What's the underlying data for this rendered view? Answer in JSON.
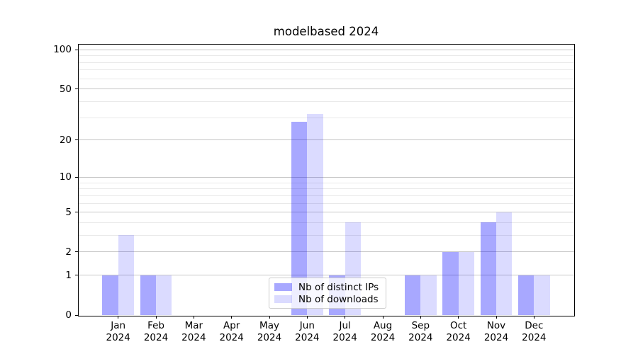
{
  "title": "modelbased 2024",
  "chart_data": {
    "type": "bar",
    "title": "modelbased 2024",
    "x_categories": [
      "Jan",
      "Feb",
      "Mar",
      "Apr",
      "May",
      "Jun",
      "Jul",
      "Aug",
      "Sep",
      "Oct",
      "Nov",
      "Dec"
    ],
    "x_year": "2024",
    "series": [
      {
        "name": "Nb of distinct IPs",
        "color": "rgba(0,0,255,0.34)",
        "values": [
          1,
          1,
          0,
          0,
          0,
          28,
          1,
          0,
          1,
          2,
          4,
          1
        ]
      },
      {
        "name": "Nb of downloads",
        "color": "rgba(0,0,255,0.14)",
        "values": [
          3,
          1,
          0,
          0,
          0,
          32,
          4,
          0,
          1,
          2,
          5,
          1
        ]
      }
    ],
    "y_scale": "log1p",
    "y_major_ticks": [
      0,
      1,
      2,
      5,
      10,
      20,
      50,
      100
    ],
    "y_minor_gridlines": [
      3,
      4,
      6,
      7,
      8,
      9,
      30,
      40,
      60,
      70,
      80,
      90
    ],
    "ylim": [
      0,
      111
    ],
    "grid": "horizontal",
    "legend_position": "lower-center-inside"
  },
  "legend": {
    "items": [
      {
        "label": "Nb of distinct IPs"
      },
      {
        "label": "Nb of downloads"
      }
    ]
  },
  "colors": {
    "bar_dark": "rgba(0,0,255,0.34)",
    "bar_light": "rgba(0,0,255,0.14)",
    "grid_major": "#c6c6c6",
    "grid_minor": "#e9e9e9",
    "spine": "#000000",
    "background": "#ffffff"
  }
}
